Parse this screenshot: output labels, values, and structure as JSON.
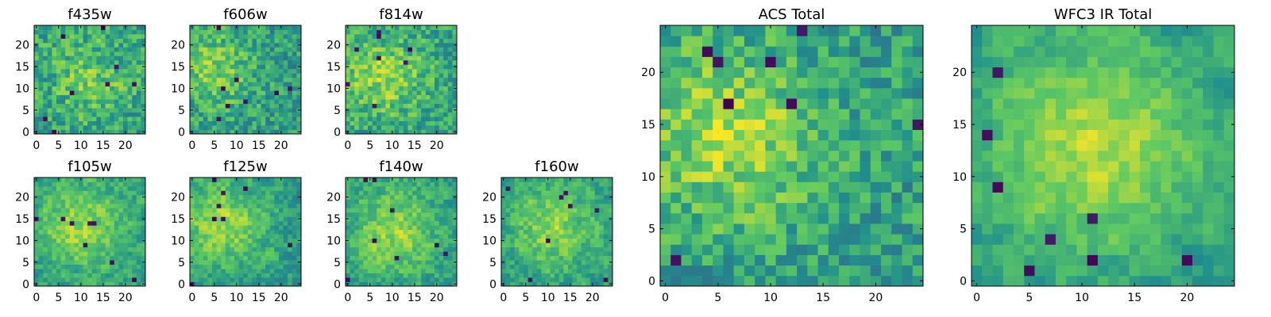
{
  "figure": {
    "colormap": "viridis",
    "colors": [
      "#440154",
      "#3b528b",
      "#21918c",
      "#5ec962",
      "#fde725"
    ]
  },
  "chart_data": [
    {
      "type": "heatmap",
      "title": "f435w",
      "grid_size": 25,
      "xlim": [
        -0.5,
        24.5
      ],
      "ylim": [
        -0.5,
        24.5
      ],
      "xticks": [
        0,
        5,
        10,
        15,
        20
      ],
      "yticks": [
        0,
        5,
        10,
        15,
        20
      ],
      "xlabel": "",
      "ylabel": "",
      "pattern": {
        "seed": 11,
        "center": [
          12,
          12
        ],
        "amplitude": 0.18,
        "width": 6,
        "noise": 0.22,
        "base": 0.58,
        "smooth": 0.15
      }
    },
    {
      "type": "heatmap",
      "title": "f606w",
      "grid_size": 25,
      "xlim": [
        -0.5,
        24.5
      ],
      "ylim": [
        -0.5,
        24.5
      ],
      "xticks": [
        0,
        5,
        10,
        15,
        20
      ],
      "yticks": [
        0,
        5,
        10,
        15,
        20
      ],
      "xlabel": "",
      "ylabel": "",
      "pattern": {
        "seed": 23,
        "center": [
          5,
          14
        ],
        "amplitude": 0.25,
        "width": 6,
        "noise": 0.22,
        "base": 0.56,
        "smooth": 0.2
      }
    },
    {
      "type": "heatmap",
      "title": "f814w",
      "grid_size": 25,
      "xlim": [
        -0.5,
        24.5
      ],
      "ylim": [
        -0.5,
        24.5
      ],
      "xticks": [
        0,
        5,
        10,
        15,
        20
      ],
      "yticks": [
        0,
        5,
        10,
        15,
        20
      ],
      "xlabel": "",
      "ylabel": "",
      "pattern": {
        "seed": 37,
        "center": [
          8,
          13
        ],
        "amplitude": 0.25,
        "width": 7,
        "noise": 0.22,
        "base": 0.57,
        "smooth": 0.2
      }
    },
    {
      "type": "heatmap",
      "title": "f105w",
      "grid_size": 25,
      "xlim": [
        -0.5,
        24.5
      ],
      "ylim": [
        -0.5,
        24.5
      ],
      "xticks": [
        0,
        5,
        10,
        15,
        20
      ],
      "yticks": [
        0,
        5,
        10,
        15,
        20
      ],
      "xlabel": "",
      "ylabel": "",
      "pattern": {
        "seed": 41,
        "center": [
          10,
          13
        ],
        "amplitude": 0.3,
        "width": 7,
        "noise": 0.2,
        "base": 0.55,
        "smooth": 0.45
      }
    },
    {
      "type": "heatmap",
      "title": "f125w",
      "grid_size": 25,
      "xlim": [
        -0.5,
        24.5
      ],
      "ylim": [
        -0.5,
        24.5
      ],
      "xticks": [
        0,
        5,
        10,
        15,
        20
      ],
      "yticks": [
        0,
        5,
        10,
        15,
        20
      ],
      "xlabel": "",
      "ylabel": "",
      "pattern": {
        "seed": 53,
        "center": [
          7,
          14
        ],
        "amplitude": 0.28,
        "width": 7,
        "noise": 0.2,
        "base": 0.55,
        "smooth": 0.45
      }
    },
    {
      "type": "heatmap",
      "title": "f140w",
      "grid_size": 25,
      "xlim": [
        -0.5,
        24.5
      ],
      "ylim": [
        -0.5,
        24.5
      ],
      "xticks": [
        0,
        5,
        10,
        15,
        20
      ],
      "yticks": [
        0,
        5,
        10,
        15,
        20
      ],
      "xlabel": "",
      "ylabel": "",
      "pattern": {
        "seed": 67,
        "center": [
          10,
          12
        ],
        "amplitude": 0.28,
        "width": 7,
        "noise": 0.2,
        "base": 0.56,
        "smooth": 0.45
      }
    },
    {
      "type": "heatmap",
      "title": "f160w",
      "grid_size": 25,
      "xlim": [
        -0.5,
        24.5
      ],
      "ylim": [
        -0.5,
        24.5
      ],
      "xticks": [
        0,
        5,
        10,
        15,
        20
      ],
      "yticks": [
        0,
        5,
        10,
        15,
        20
      ],
      "xlabel": "",
      "ylabel": "",
      "pattern": {
        "seed": 79,
        "center": [
          11,
          13
        ],
        "amplitude": 0.28,
        "width": 7,
        "noise": 0.2,
        "base": 0.55,
        "smooth": 0.45
      }
    },
    {
      "type": "heatmap",
      "title": "ACS Total",
      "grid_size": 25,
      "xlim": [
        -0.5,
        24.5
      ],
      "ylim": [
        -0.5,
        24.5
      ],
      "xticks": [
        0,
        5,
        10,
        15,
        20
      ],
      "yticks": [
        0,
        5,
        10,
        15,
        20
      ],
      "xlabel": "",
      "ylabel": "",
      "pattern": {
        "seed": 97,
        "center": [
          6,
          14
        ],
        "amplitude": 0.3,
        "width": 6,
        "noise": 0.2,
        "base": 0.56,
        "smooth": 0.15
      }
    },
    {
      "type": "heatmap",
      "title": "WFC3 IR Total",
      "grid_size": 25,
      "xlim": [
        -0.5,
        24.5
      ],
      "ylim": [
        -0.5,
        24.5
      ],
      "xticks": [
        0,
        5,
        10,
        15,
        20
      ],
      "yticks": [
        0,
        5,
        10,
        15,
        20
      ],
      "xlabel": "",
      "ylabel": "",
      "pattern": {
        "seed": 113,
        "center": [
          11,
          13
        ],
        "amplitude": 0.35,
        "width": 8,
        "noise": 0.18,
        "base": 0.52,
        "smooth": 0.55
      }
    }
  ]
}
